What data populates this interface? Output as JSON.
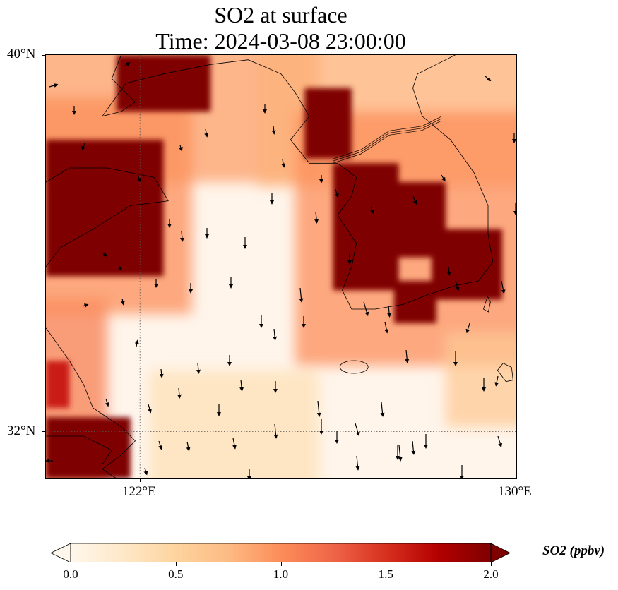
{
  "title": {
    "line1": "SO2 at surface",
    "line2": "Time: 2024-03-08 23:00:00"
  },
  "axes": {
    "lat_labels": [
      "40°N",
      "32°N"
    ],
    "lon_labels": [
      "122°E",
      "130°E"
    ],
    "lon_range": [
      120,
      130
    ],
    "lat_range": [
      31,
      40
    ],
    "gridlines": {
      "lon": [
        122
      ],
      "lat": [
        32
      ],
      "style": "dotted"
    }
  },
  "colorbar": {
    "label": "SO2 (ppbv)",
    "ticks": [
      "0.0",
      "0.5",
      "1.0",
      "1.5",
      "2.0"
    ],
    "range": [
      0,
      2
    ],
    "extend": "both",
    "colormap": "OrRd",
    "colors": [
      "#fff7ec",
      "#fee8c8",
      "#fdd49e",
      "#fdbb84",
      "#fc8d59",
      "#ef6548",
      "#d7301f",
      "#b30000",
      "#7f0000"
    ]
  },
  "map_data": {
    "variable": "SO2",
    "units": "ppbv",
    "vector_field": "surface wind",
    "high_concentration_regions": [
      {
        "name": "north china coast",
        "lon": [
          121.5,
          123.5
        ],
        "lat": [
          38.8,
          40.0
        ],
        "value": 2.0
      },
      {
        "name": "west coast block",
        "lon": [
          120.0,
          122.5
        ],
        "lat": [
          35.3,
          38.2
        ],
        "value": 2.0
      },
      {
        "name": "north korea west",
        "lon": [
          125.5,
          126.5
        ],
        "lat": [
          37.8,
          39.3
        ],
        "value": 2.0
      },
      {
        "name": "korea west coast",
        "lon": [
          126.1,
          127.5
        ],
        "lat": [
          35.0,
          37.7
        ],
        "value": 2.0
      },
      {
        "name": "korea central",
        "lon": [
          127.0,
          128.5
        ],
        "lat": [
          35.7,
          37.3
        ],
        "value": 2.0
      },
      {
        "name": "korea east",
        "lon": [
          128.2,
          129.7
        ],
        "lat": [
          34.8,
          36.3
        ],
        "value": 2.0
      },
      {
        "name": "korea southeast",
        "lon": [
          127.4,
          128.3
        ],
        "lat": [
          34.3,
          35.2
        ],
        "value": 2.0
      },
      {
        "name": "shanghai region",
        "lon": [
          120.0,
          121.8
        ],
        "lat": [
          31.0,
          32.3
        ],
        "value": 2.0
      },
      {
        "name": "east china coast",
        "lon": [
          120.0,
          120.5
        ],
        "lat": [
          32.5,
          33.5
        ],
        "value": 1.6
      }
    ],
    "background_value_range": [
      0.0,
      0.6
    ]
  }
}
